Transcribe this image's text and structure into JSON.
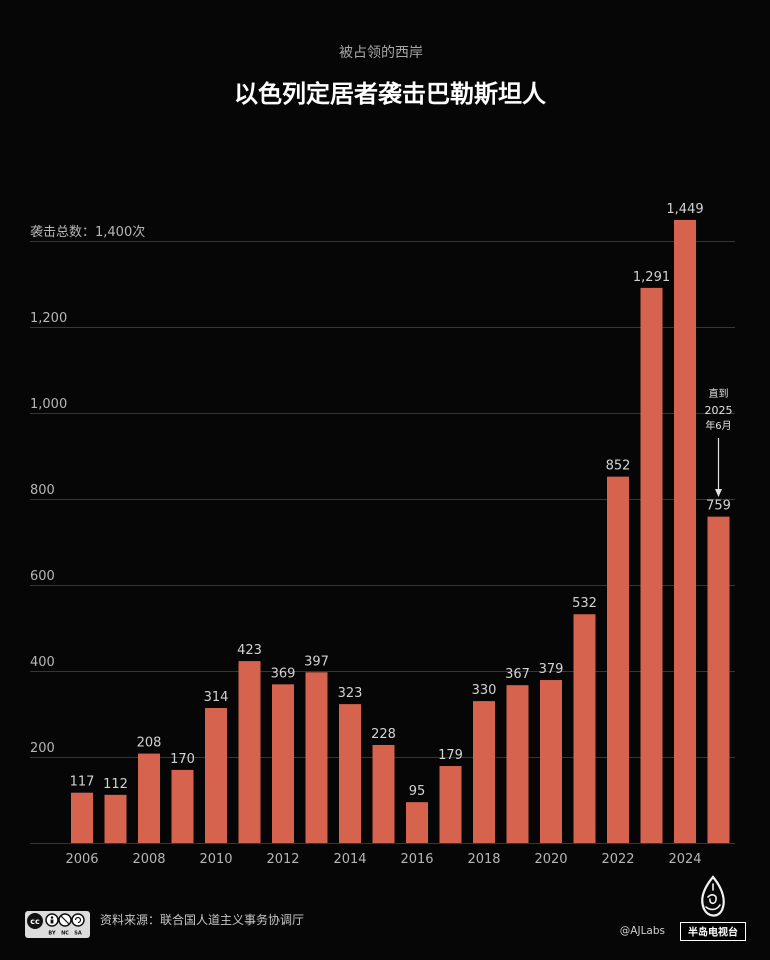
{
  "chart_data": {
    "type": "bar",
    "subtitle": "被占领的西岸",
    "title": "以色列定居者袭击巴勒斯坦人",
    "x": [
      2006,
      2007,
      2008,
      2009,
      2010,
      2011,
      2012,
      2013,
      2014,
      2015,
      2016,
      2017,
      2018,
      2019,
      2020,
      2021,
      2022,
      2023,
      2024,
      2025
    ],
    "values": [
      117,
      112,
      208,
      170,
      314,
      423,
      369,
      397,
      323,
      228,
      95,
      179,
      330,
      367,
      379,
      532,
      852,
      1291,
      1449,
      759
    ],
    "value_labels": [
      "117",
      "112",
      "208",
      "170",
      "314",
      "423",
      "369",
      "397",
      "323",
      "228",
      "95",
      "179",
      "330",
      "367",
      "379",
      "532",
      "852",
      "1,291",
      "1,449",
      "759"
    ],
    "xtick_labels": [
      "2006",
      "2008",
      "2010",
      "2012",
      "2014",
      "2016",
      "2018",
      "2020",
      "2022",
      "2024"
    ],
    "yticks": [
      200,
      400,
      600,
      800,
      1000,
      1200,
      1400
    ],
    "ytick_labels": [
      "200",
      "400",
      "600",
      "800",
      "1,000",
      "1,200",
      "袭击总数：1,400次"
    ],
    "ylim": [
      0,
      1400
    ],
    "grid": "horizontal",
    "legend": "none",
    "bar_color": "#d5634d",
    "annotation": {
      "x": 2025,
      "lines": [
        "直到",
        "2025",
        "年6月"
      ]
    }
  },
  "footer": {
    "cc_license": {
      "mark": "cc",
      "labels": [
        "BY",
        "NC",
        "SA"
      ]
    },
    "source": "资料来源：联合国人道主义事务协调厅",
    "handle": "@AJLabs",
    "brand": "半岛电视台"
  }
}
